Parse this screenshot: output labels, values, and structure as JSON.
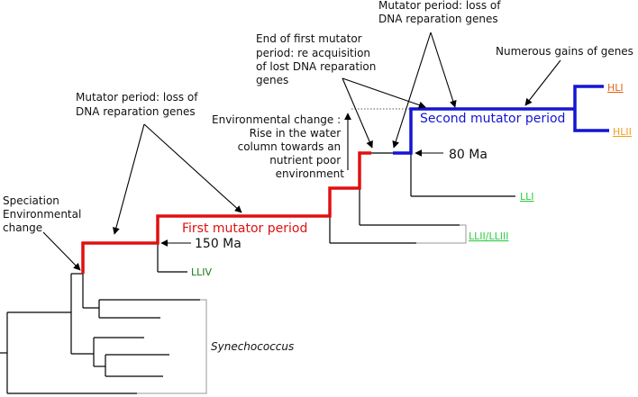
{
  "colors": {
    "tree": "#000000",
    "first_period": "#e01010",
    "second_period": "#1414d4",
    "hli": "#e0641a",
    "hlii": "#f0a020",
    "lli": "#2ecc40",
    "llii_lliii": "#2ecc40",
    "lliv": "#1a7a1a"
  },
  "labels": {
    "speciation": [
      "Speciation",
      "Environmental",
      "change"
    ],
    "mutator_loss_left": [
      "Mutator period: loss of",
      "DNA reparation genes"
    ],
    "first_mutator_period": "First mutator period",
    "ma_150": "150 Ma",
    "environmental_change": [
      "Environmental change :",
      "Rise in the water",
      "column towards an",
      "nutrient poor",
      "environment"
    ],
    "end_first_mutator": [
      "End of first mutator",
      "period: re acquisition",
      "of lost DNA reparation",
      "genes"
    ],
    "mutator_loss_top": [
      "Mutator period: loss of",
      "DNA reparation genes"
    ],
    "numerous_gains": "Numerous gains of genes",
    "second_mutator_period": "Second mutator period",
    "ma_80": "80 Ma",
    "synechococcus": "Synechococcus"
  },
  "clades": {
    "hli": "HLI",
    "hlii": "HLII",
    "lli": "LLI",
    "llii_lliii": "LLII/LLIII",
    "lliv": "LLIV"
  }
}
